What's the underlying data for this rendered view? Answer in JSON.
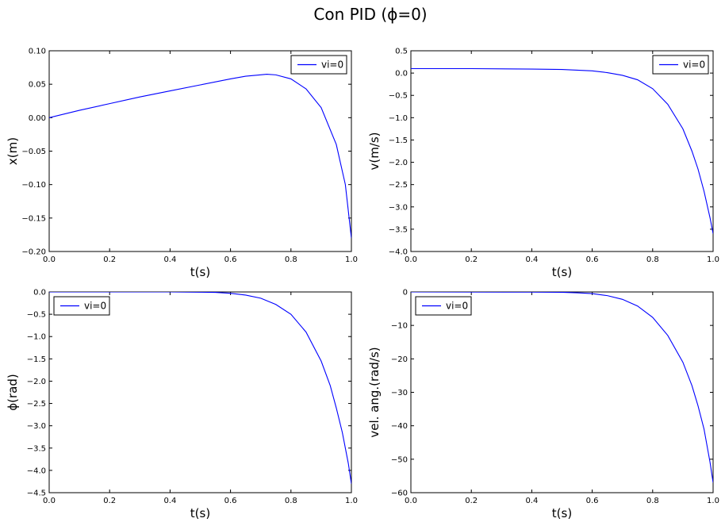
{
  "figure": {
    "title": "Con PID (ϕ=0)"
  },
  "chart_data": [
    {
      "type": "line",
      "xlabel": "t(s)",
      "ylabel": "x(m)",
      "xlim": [
        0,
        1
      ],
      "ylim": [
        -0.2,
        0.1
      ],
      "xticks": [
        "0.0",
        "0.2",
        "0.4",
        "0.6",
        "0.8",
        "1.0"
      ],
      "yticks": [
        "0.10",
        "0.05",
        "0.00",
        "−0.05",
        "−0.10",
        "−0.15",
        "−0.20"
      ],
      "legend_position": "top-right",
      "grid": false,
      "series": [
        {
          "name": "vi=0",
          "color": "#0000ff",
          "x": [
            0,
            0.1,
            0.2,
            0.3,
            0.4,
            0.5,
            0.6,
            0.65,
            0.7,
            0.72,
            0.75,
            0.8,
            0.85,
            0.9,
            0.95,
            0.98,
            1.0
          ],
          "y": [
            0,
            0.011,
            0.021,
            0.031,
            0.04,
            0.049,
            0.058,
            0.062,
            0.064,
            0.065,
            0.064,
            0.058,
            0.043,
            0.015,
            -0.04,
            -0.1,
            -0.18
          ]
        }
      ]
    },
    {
      "type": "line",
      "xlabel": "t(s)",
      "ylabel": "v(m/s)",
      "xlim": [
        0,
        1
      ],
      "ylim": [
        -4,
        0.5
      ],
      "xticks": [
        "0.0",
        "0.2",
        "0.4",
        "0.6",
        "0.8",
        "1.0"
      ],
      "yticks": [
        "0.5",
        "0.0",
        "−0.5",
        "−1.0",
        "−1.5",
        "−2.0",
        "−2.5",
        "−3.0",
        "−3.5",
        "−4.0"
      ],
      "legend_position": "top-right",
      "grid": false,
      "series": [
        {
          "name": "vi=0",
          "color": "#0000ff",
          "x": [
            0,
            0.2,
            0.4,
            0.5,
            0.6,
            0.65,
            0.7,
            0.75,
            0.8,
            0.85,
            0.9,
            0.93,
            0.95,
            0.97,
            0.99,
            1.0
          ],
          "y": [
            0.1,
            0.1,
            0.09,
            0.08,
            0.05,
            0.01,
            -0.05,
            -0.15,
            -0.35,
            -0.7,
            -1.25,
            -1.75,
            -2.15,
            -2.65,
            -3.25,
            -3.6
          ]
        }
      ]
    },
    {
      "type": "line",
      "xlabel": "t(s)",
      "ylabel": "ϕ(rad)",
      "xlim": [
        0,
        1
      ],
      "ylim": [
        -4.5,
        0
      ],
      "xticks": [
        "0.0",
        "0.2",
        "0.4",
        "0.6",
        "0.8",
        "1.0"
      ],
      "yticks": [
        "0.0",
        "−0.5",
        "−1.0",
        "−1.5",
        "−2.0",
        "−2.5",
        "−3.0",
        "−3.5",
        "−4.0",
        "−4.5"
      ],
      "legend_position": "top-left",
      "grid": false,
      "series": [
        {
          "name": "vi=0",
          "color": "#0000ff",
          "x": [
            0,
            0.4,
            0.5,
            0.55,
            0.6,
            0.65,
            0.7,
            0.75,
            0.8,
            0.85,
            0.9,
            0.93,
            0.95,
            0.97,
            0.99,
            1.0
          ],
          "y": [
            0,
            0,
            -0.005,
            -0.01,
            -0.03,
            -0.07,
            -0.14,
            -0.28,
            -0.5,
            -0.9,
            -1.55,
            -2.1,
            -2.6,
            -3.15,
            -3.85,
            -4.3
          ]
        }
      ]
    },
    {
      "type": "line",
      "xlabel": "t(s)",
      "ylabel": "vel. ang.(rad/s)",
      "xlim": [
        0,
        1
      ],
      "ylim": [
        -60,
        0
      ],
      "xticks": [
        "0.0",
        "0.2",
        "0.4",
        "0.6",
        "0.8",
        "1.0"
      ],
      "yticks": [
        "0",
        "−10",
        "−20",
        "−30",
        "−40",
        "−50",
        "−60"
      ],
      "legend_position": "top-left",
      "grid": false,
      "series": [
        {
          "name": "vi=0",
          "color": "#0000ff",
          "x": [
            0,
            0.4,
            0.5,
            0.55,
            0.6,
            0.65,
            0.7,
            0.75,
            0.8,
            0.85,
            0.9,
            0.93,
            0.95,
            0.97,
            0.99,
            1.0
          ],
          "y": [
            0,
            -0.05,
            -0.1,
            -0.25,
            -0.5,
            -1.1,
            -2.2,
            -4.2,
            -7.6,
            -13,
            -21,
            -28,
            -34,
            -41,
            -51,
            -57
          ]
        }
      ]
    }
  ]
}
